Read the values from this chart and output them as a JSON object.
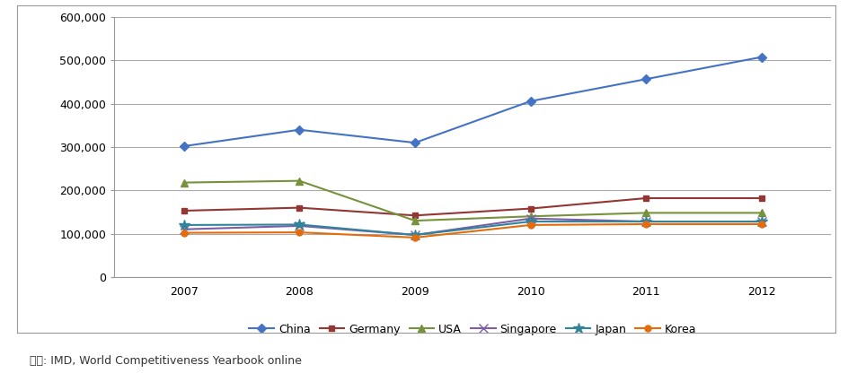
{
  "years": [
    2007,
    2008,
    2009,
    2010,
    2011,
    2012
  ],
  "series": {
    "China": [
      302000,
      340000,
      310000,
      406000,
      457000,
      508000
    ],
    "Germany": [
      153000,
      160000,
      142000,
      158000,
      182000,
      182000
    ],
    "USA": [
      218000,
      222000,
      130000,
      140000,
      148000,
      148000
    ],
    "Singapore": [
      110000,
      118000,
      97000,
      135000,
      128000,
      128000
    ],
    "Japan": [
      120000,
      121000,
      97000,
      128000,
      128000,
      128000
    ],
    "Korea": [
      102000,
      103000,
      91000,
      120000,
      122000,
      122000
    ]
  },
  "colors": {
    "China": "#4472C4",
    "Germany": "#943634",
    "USA": "#76923C",
    "Singapore": "#7B5EA7",
    "Japan": "#31849B",
    "Korea": "#E46C0A"
  },
  "markers": {
    "China": "D",
    "Germany": "s",
    "USA": "^",
    "Singapore": "x",
    "Japan": "*",
    "Korea": "o"
  },
  "marker_sizes": {
    "China": 5,
    "Germany": 5,
    "USA": 6,
    "Singapore": 7,
    "Japan": 9,
    "Korea": 5
  },
  "ylim": [
    0,
    600000
  ],
  "yticks": [
    0,
    100000,
    200000,
    300000,
    400000,
    500000,
    600000
  ],
  "source_text": "출처: IMD, World Competitiveness Yearbook online",
  "background_color": "#FFFFFF",
  "plot_bg_color": "#FFFFFF",
  "grid_color": "#AAAAAA",
  "border_color": "#999999"
}
